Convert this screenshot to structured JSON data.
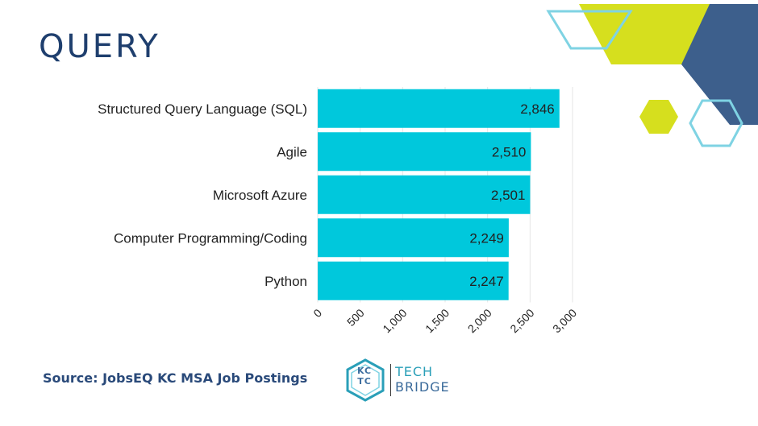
{
  "page": {
    "title": "QUERY",
    "source": "Source: JobsEQ KC MSA Job Postings"
  },
  "logo": {
    "monogram_line1": "KC",
    "monogram_line2": "TC",
    "word1": "TECH",
    "word2": "BRIDGE"
  },
  "colors": {
    "bar": "#00c8dc",
    "title": "#1f3f6e",
    "deco_lime": "#d6df1e",
    "deco_navy": "#3d5f8c",
    "deco_outline": "#7fd3e3"
  },
  "chart_data": {
    "type": "bar",
    "orientation": "horizontal",
    "categories": [
      "Structured Query Language (SQL)",
      "Agile",
      "Microsoft Azure",
      "Computer Programming/Coding",
      "Python"
    ],
    "values": [
      2846,
      2510,
      2501,
      2249,
      2247
    ],
    "value_labels": [
      "2,846",
      "2,510",
      "2,501",
      "2,249",
      "2,247"
    ],
    "x_ticks": [
      0,
      500,
      1000,
      1500,
      2000,
      2500,
      3000
    ],
    "x_tick_labels": [
      "0",
      "500",
      "1,000",
      "1,500",
      "2,000",
      "2,500",
      "3,000"
    ],
    "xlim": [
      0,
      3000
    ],
    "grid": true,
    "legend": "none"
  }
}
